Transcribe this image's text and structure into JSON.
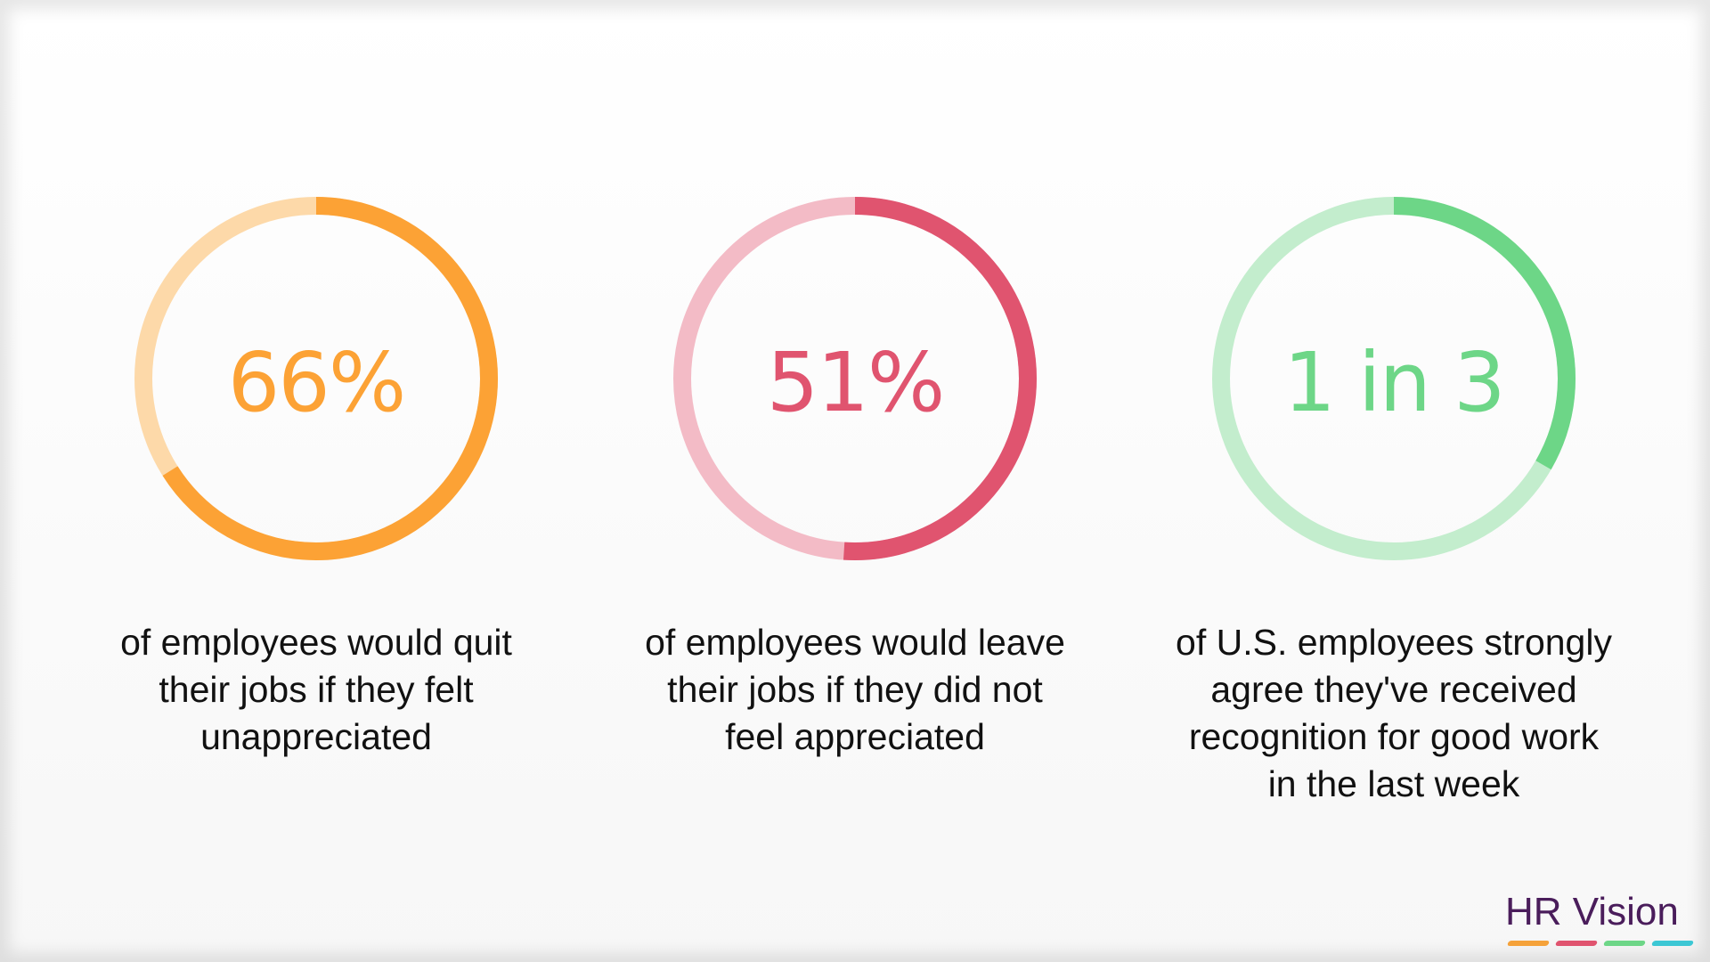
{
  "chart_data": [
    {
      "type": "donut",
      "value_label": "66%",
      "fraction": 0.66,
      "caption": [
        "of employees would quit",
        "their jobs if they felt",
        "unappreciated"
      ],
      "color": "#fca235",
      "track_color": "#fdd9a9"
    },
    {
      "type": "donut",
      "value_label": "51%",
      "fraction": 0.51,
      "caption": [
        "of employees would leave",
        "their jobs if they did not",
        "feel appreciated"
      ],
      "color": "#e0546f",
      "track_color": "#f3bbc6"
    },
    {
      "type": "donut",
      "value_label": "1 in 3",
      "fraction": 0.3333,
      "caption": [
        "of U.S. employees strongly",
        "agree they've received",
        "recognition for good work",
        "in the last week"
      ],
      "color": "#6dd687",
      "track_color": "#c3edcd"
    }
  ],
  "logo": {
    "text": "HR Vision",
    "text_color": "#4a1d5b",
    "bar_colors": [
      "#f5a23a",
      "#e0546f",
      "#6dd687",
      "#3cc7d4"
    ]
  }
}
